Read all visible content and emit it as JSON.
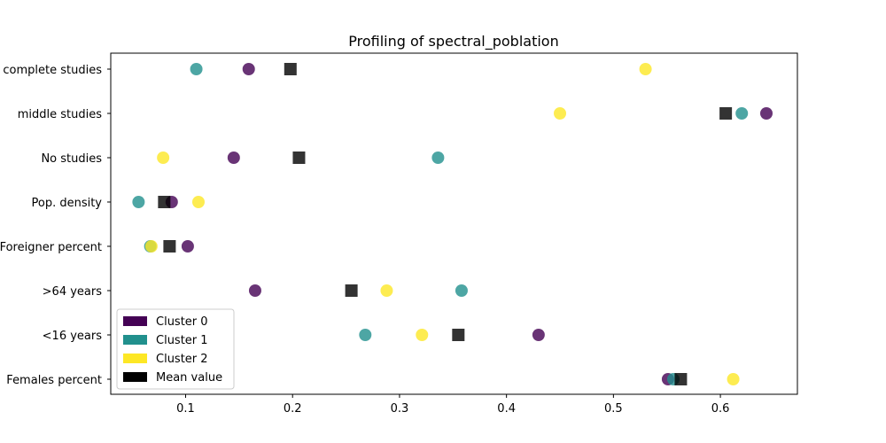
{
  "chart_data": {
    "type": "scatter",
    "title": "Profiling of spectral_poblation",
    "xlabel": "",
    "ylabel": "",
    "categories": [
      "Females percent",
      "<16 years",
      ">64 years",
      "Foreigner percent",
      "Pop. density",
      "No studies",
      "middle studies",
      "complete studies"
    ],
    "xlim": [
      0.03,
      0.672
    ],
    "xticks": [
      0.1,
      0.2,
      0.3,
      0.4,
      0.5,
      0.6
    ],
    "xtick_labels": [
      "0.1",
      "0.2",
      "0.3",
      "0.4",
      "0.5",
      "0.6"
    ],
    "grid": false,
    "legend": {
      "position": "lower-left"
    },
    "series": [
      {
        "name": "Cluster 0",
        "marker": "circle",
        "color": "#440154",
        "values": [
          0.551,
          0.43,
          0.165,
          0.102,
          0.087,
          0.145,
          0.643,
          0.159
        ]
      },
      {
        "name": "Cluster 1",
        "marker": "circle",
        "color": "#21908d",
        "values": [
          0.556,
          0.268,
          0.358,
          0.067,
          0.056,
          0.336,
          0.62,
          0.11
        ]
      },
      {
        "name": "Cluster 2",
        "marker": "circle",
        "color": "#fde725",
        "values": [
          0.612,
          0.321,
          0.288,
          0.068,
          0.112,
          0.079,
          0.45,
          0.53
        ]
      },
      {
        "name": "Mean value",
        "marker": "square",
        "color": "#000000",
        "values": [
          0.563,
          0.355,
          0.255,
          0.085,
          0.08,
          0.206,
          0.605,
          0.198
        ]
      }
    ]
  }
}
